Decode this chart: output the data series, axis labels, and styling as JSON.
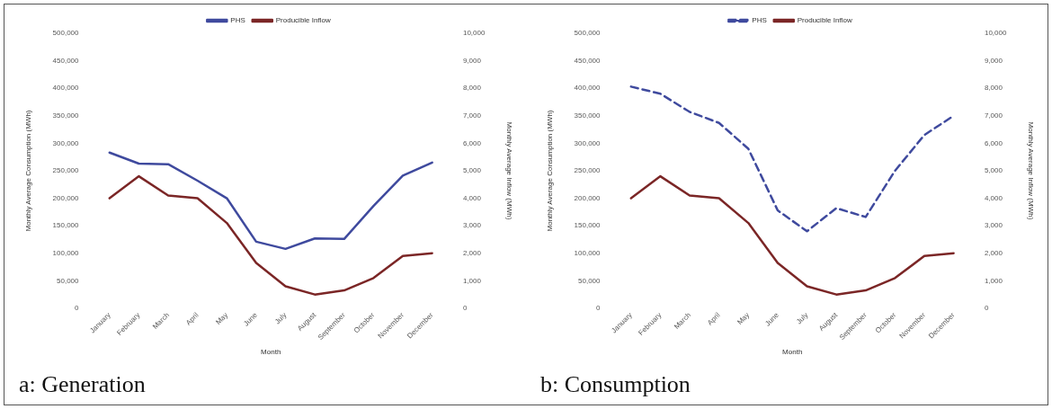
{
  "chart_data": [
    {
      "type": "line",
      "title": "a: Generation",
      "xlabel": "Month",
      "ylabel": "Monthly Average Consumption (MWh)",
      "y2label": "Monthly Average Inflow (MWh)",
      "categories": [
        "January",
        "February",
        "March",
        "April",
        "May",
        "June",
        "July",
        "August",
        "September",
        "October",
        "November",
        "December"
      ],
      "series": [
        {
          "name": "PHS",
          "color": "#3f4a9e",
          "values": [
            283000,
            263000,
            262000,
            232000,
            200000,
            121000,
            108000,
            127000,
            126000,
            186000,
            241000,
            265000
          ]
        },
        {
          "name": "Producible Inflow",
          "color": "#7b2626",
          "axis": "y2",
          "values": [
            4000,
            4800,
            4100,
            4000,
            3100,
            1650,
            800,
            500,
            650,
            1100,
            1900,
            2000
          ]
        }
      ],
      "ylim": [
        0,
        500000
      ],
      "yticks": [
        0,
        {
          "value": 50000,
          "label": "50,000"
        },
        {
          "value": 100000,
          "label": "100,000"
        },
        {
          "value": 150000,
          "label": "150,000"
        },
        {
          "value": 200000,
          "label": "200,000"
        },
        {
          "value": 250000,
          "label": "250,000"
        },
        {
          "value": 300000,
          "label": "300,000"
        },
        {
          "value": 350000,
          "label": "350,000"
        },
        {
          "value": 400000,
          "label": "400,000"
        },
        {
          "value": 450000,
          "label": "450,000"
        },
        {
          "value": 500000,
          "label": "500,000"
        }
      ],
      "y2lim": [
        0,
        10000
      ],
      "y2ticks": [
        0,
        {
          "value": 1000,
          "label": "1,000"
        },
        {
          "value": 2000,
          "label": "2,000"
        },
        {
          "value": 3000,
          "label": "3,000"
        },
        {
          "value": 4000,
          "label": "4,000"
        },
        {
          "value": 5000,
          "label": "5,000"
        },
        {
          "value": 6000,
          "label": "6,000"
        },
        {
          "value": 7000,
          "label": "7,000"
        },
        {
          "value": 8000,
          "label": "8,000"
        },
        {
          "value": 9000,
          "label": "9,000"
        },
        {
          "value": 10000,
          "label": "10,000"
        }
      ],
      "grid": false,
      "legend": "top",
      "marker": "none",
      "line_style": "solid"
    },
    {
      "type": "line",
      "title": "b: Consumption",
      "xlabel": "Month",
      "ylabel": "Monthly Average Consumption (MWh)",
      "y2label": "Monthly Average Inflow (MWh)",
      "categories": [
        "January",
        "February",
        "March",
        "April",
        "May",
        "June",
        "July",
        "August",
        "September",
        "October",
        "November",
        "December"
      ],
      "series": [
        {
          "name": "PHS",
          "color": "#3f4a9e",
          "line_style": "dashed",
          "values": [
            403000,
            390000,
            357000,
            337000,
            290000,
            178000,
            140000,
            182000,
            166000,
            250000,
            315000,
            350000
          ]
        },
        {
          "name": "Producible Inflow",
          "color": "#7b2626",
          "axis": "y2",
          "values": [
            4000,
            4800,
            4100,
            4000,
            3100,
            1650,
            800,
            500,
            650,
            1100,
            1900,
            2000
          ]
        }
      ],
      "ylim": [
        0,
        500000
      ],
      "yticks": [
        0,
        {
          "value": 50000,
          "label": "50,000"
        },
        {
          "value": 100000,
          "label": "100,000"
        },
        {
          "value": 150000,
          "label": "150,000"
        },
        {
          "value": 200000,
          "label": "200,000"
        },
        {
          "value": 250000,
          "label": "250,000"
        },
        {
          "value": 300000,
          "label": "300,000"
        },
        {
          "value": 350000,
          "label": "350,000"
        },
        {
          "value": 400000,
          "label": "400,000"
        },
        {
          "value": 450000,
          "label": "450,000"
        },
        {
          "value": 500000,
          "label": "500,000"
        }
      ],
      "y2lim": [
        0,
        10000
      ],
      "y2ticks": [
        0,
        {
          "value": 1000,
          "label": "1,000"
        },
        {
          "value": 2000,
          "label": "2,000"
        },
        {
          "value": 3000,
          "label": "3,000"
        },
        {
          "value": 4000,
          "label": "4,000"
        },
        {
          "value": 5000,
          "label": "5,000"
        },
        {
          "value": 6000,
          "label": "6,000"
        },
        {
          "value": 7000,
          "label": "7,000"
        },
        {
          "value": 8000,
          "label": "8,000"
        },
        {
          "value": 9000,
          "label": "9,000"
        },
        {
          "value": 10000,
          "label": "10,000"
        }
      ],
      "grid": false,
      "legend": "top",
      "marker": "none",
      "line_style": "solid"
    }
  ]
}
